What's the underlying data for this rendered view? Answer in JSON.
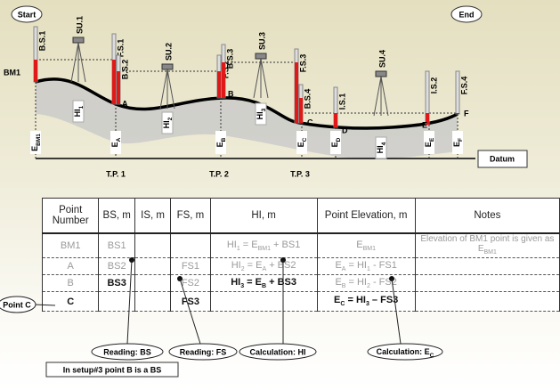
{
  "labels": {
    "start": "Start",
    "end": "End",
    "bm1": "BM1",
    "datum": "Datum"
  },
  "staffs": [
    "B.S.1",
    "SU.1",
    "F.S.1",
    "B.S.2",
    "SU.2",
    "F.S.2",
    "B.S.3",
    "SU.3",
    "F.S.3",
    "B.S.4",
    "I.S.1",
    "SU.4",
    "I.S.2",
    "F.S.4"
  ],
  "points": [
    "A",
    "B",
    "C",
    "D",
    "E",
    "F"
  ],
  "hi_labels": [
    [
      {
        "text": "HI"
      },
      {
        "text": "1",
        "sub": true
      }
    ],
    [
      {
        "text": "HI"
      },
      {
        "text": "2",
        "sub": true
      }
    ],
    [
      {
        "text": "HI"
      },
      {
        "text": "3",
        "sub": true
      }
    ],
    [
      {
        "text": "HI"
      },
      {
        "text": "4",
        "sub": true
      }
    ]
  ],
  "elevations": [
    [
      {
        "text": "E"
      },
      {
        "text": "BM1",
        "sub": true
      }
    ],
    [
      {
        "text": "E"
      },
      {
        "text": "A",
        "sub": true
      }
    ],
    [
      {
        "text": "E"
      },
      {
        "text": "B",
        "sub": true
      }
    ],
    [
      {
        "text": "E"
      },
      {
        "text": "C",
        "sub": true
      }
    ],
    [
      {
        "text": "E"
      },
      {
        "text": "D",
        "sub": true
      }
    ],
    [
      {
        "text": "E"
      },
      {
        "text": "E",
        "sub": true
      }
    ],
    [
      {
        "text": "E"
      },
      {
        "text": "F",
        "sub": true
      }
    ]
  ],
  "turning_points": [
    "T.P. 1",
    "T.P. 2",
    "T.P. 3"
  ],
  "table": {
    "header": [
      "Point Number",
      "BS, m",
      "IS, m",
      "FS, m",
      "HI, m",
      "Point Elevation, m",
      "Notes"
    ],
    "rows": [
      [
        "BM1",
        "BS1",
        null,
        null,
        [
          {
            "text": "HI"
          },
          {
            "text": "1",
            "sub": true
          },
          {
            "text": " = E"
          },
          {
            "text": "BM1",
            "sub": true
          },
          {
            "text": " + BS1"
          }
        ],
        [
          {
            "text": "E"
          },
          {
            "text": "BM1",
            "sub": true
          }
        ],
        [
          {
            "text": "Elevation of BM1 point is given as E"
          },
          {
            "text": "BM1",
            "sub": true
          }
        ]
      ],
      [
        "A",
        "BS2",
        null,
        "FS1",
        [
          {
            "text": "HI"
          },
          {
            "text": "2",
            "sub": true
          },
          {
            "text": " = E"
          },
          {
            "text": "A",
            "sub": true
          },
          {
            "text": " + BS2"
          }
        ],
        [
          {
            "text": "E"
          },
          {
            "text": "A",
            "sub": true
          },
          {
            "text": " = HI"
          },
          {
            "text": "1",
            "sub": true
          },
          {
            "text": " - FS1"
          }
        ],
        null
      ],
      [
        "B",
        "BS3",
        null,
        "FS2",
        [
          {
            "text": "HI"
          },
          {
            "text": "3",
            "sub": true
          },
          {
            "text": " = E"
          },
          {
            "text": "B",
            "sub": true
          },
          {
            "text": " + BS3"
          }
        ],
        [
          {
            "text": "E"
          },
          {
            "text": "B",
            "sub": true
          },
          {
            "text": " = HI"
          },
          {
            "text": "2",
            "sub": true
          },
          {
            "text": " - FS2"
          }
        ],
        null
      ],
      [
        "C",
        null,
        null,
        "FS3",
        null,
        [
          {
            "text": "E"
          },
          {
            "text": "C",
            "sub": true
          },
          {
            "text": " = HI"
          },
          {
            "text": "3",
            "sub": true
          },
          {
            "text": " – FS3"
          }
        ],
        null
      ]
    ]
  },
  "callouts": {
    "point_c": "Point C",
    "reading_bs": "Reading: BS",
    "reading_fs": "Reading: FS",
    "calc_hi": "Calculation: HI",
    "calc_ec": [
      {
        "text": "Calculation: E"
      },
      {
        "text": "C",
        "sub": true
      }
    ],
    "note": "In setup#3 point B is a BS"
  }
}
